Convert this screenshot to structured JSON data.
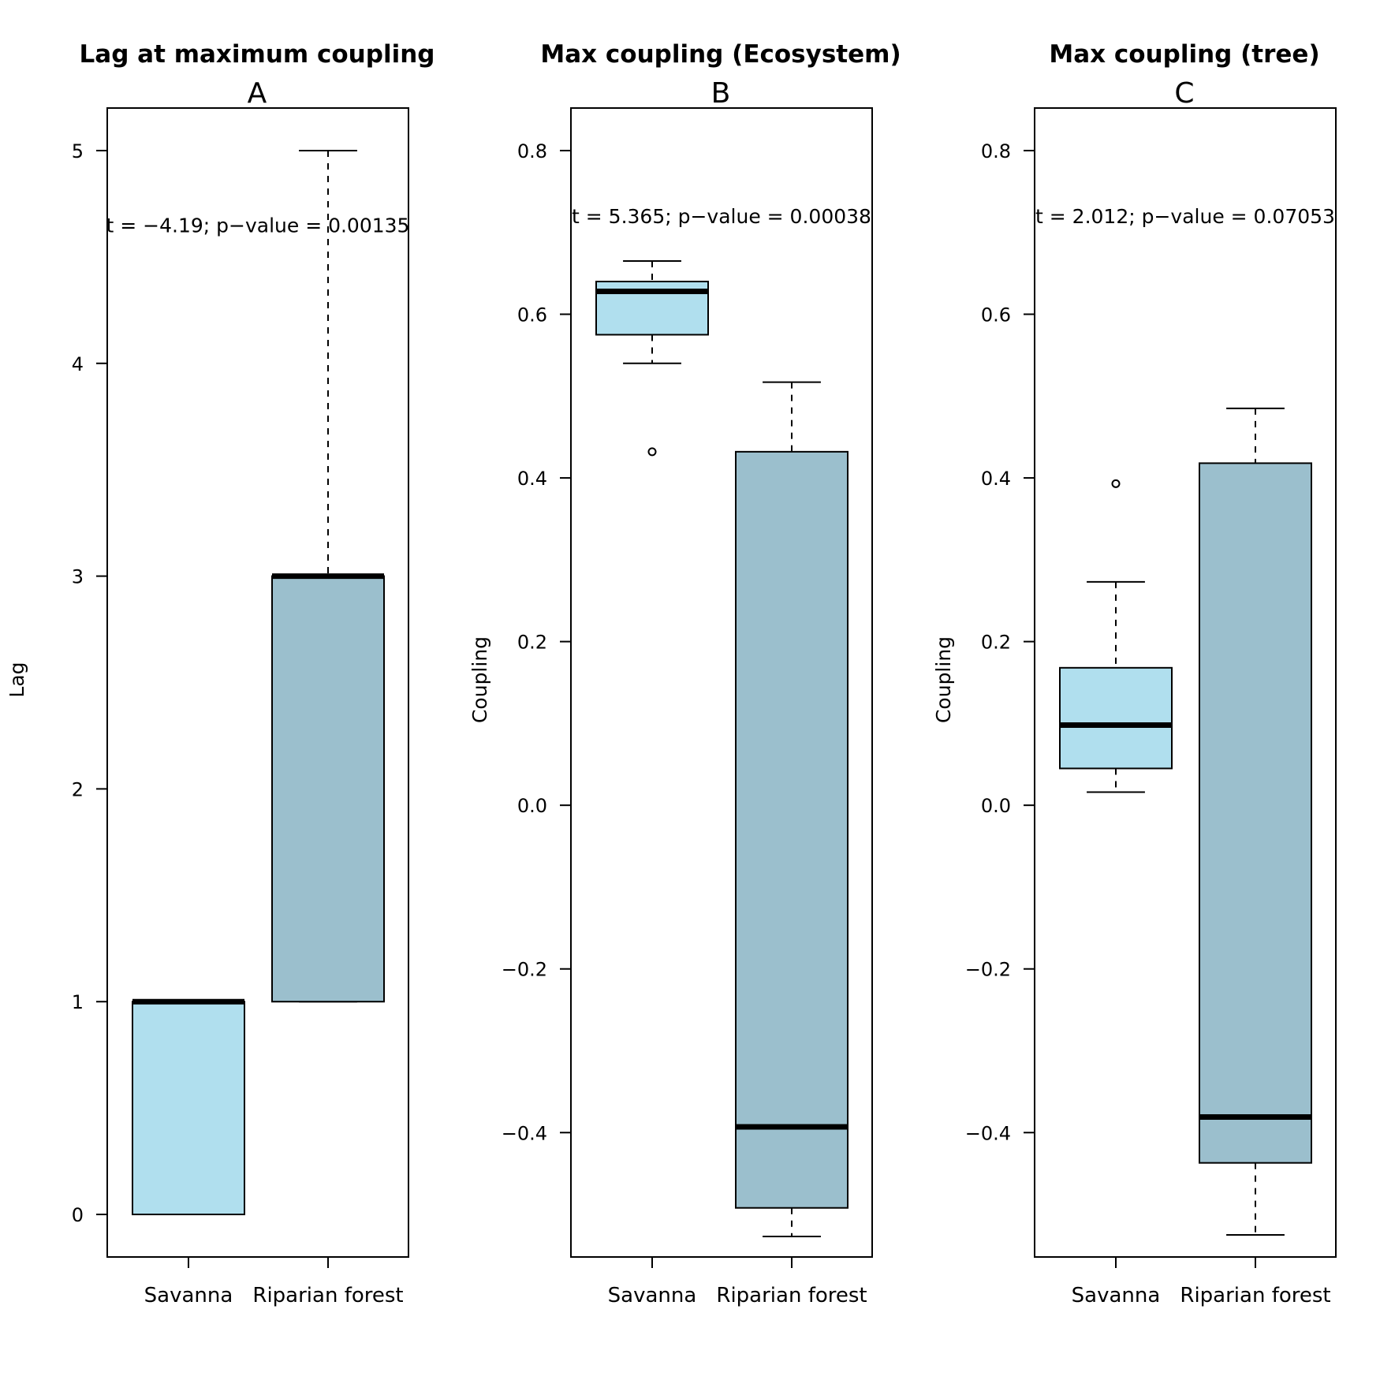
{
  "chart_data": [
    {
      "type": "boxplot",
      "title": "Lag at maximum coupling",
      "panel_label": "A",
      "ylabel": "Lag",
      "ylim": [
        -0.2,
        5.2
      ],
      "yticks": [
        0,
        1,
        2,
        3,
        4,
        5
      ],
      "ytick_labels": [
        "0",
        "1",
        "2",
        "3",
        "4",
        "5"
      ],
      "categories": [
        "Savanna",
        "Riparian forest"
      ],
      "annotation": "t = −4.19; p−value = 0.00135",
      "annotation_y": 4.65,
      "boxes": [
        {
          "category": "Savanna",
          "whisker_low": 0,
          "q1": 0,
          "median": 1,
          "q3": 1,
          "whisker_high": 1,
          "outliers": [],
          "color": "#b0dfee"
        },
        {
          "category": "Riparian forest",
          "whisker_low": 1,
          "q1": 1,
          "median": 3,
          "q3": 3,
          "whisker_high": 5,
          "outliers": [],
          "color": "#9bbfcd"
        }
      ]
    },
    {
      "type": "boxplot",
      "title": "Max coupling (Ecosystem)",
      "panel_label": "B",
      "ylabel": "Coupling",
      "ylim": [
        -0.552,
        0.852
      ],
      "yticks": [
        -0.4,
        -0.2,
        0.0,
        0.2,
        0.4,
        0.6,
        0.8
      ],
      "ytick_labels": [
        "−0.4",
        "−0.2",
        "0.0",
        "0.2",
        "0.4",
        "0.6",
        "0.8"
      ],
      "categories": [
        "Savanna",
        "Riparian forest"
      ],
      "annotation": "t = 5.365; p−value = 0.00038",
      "annotation_y": 0.72,
      "boxes": [
        {
          "category": "Savanna",
          "whisker_low": 0.54,
          "q1": 0.575,
          "median": 0.628,
          "q3": 0.64,
          "whisker_high": 0.665,
          "outliers": [
            0.432
          ],
          "color": "#b0dfee"
        },
        {
          "category": "Riparian forest",
          "whisker_low": -0.527,
          "q1": -0.492,
          "median": -0.393,
          "q3": 0.432,
          "whisker_high": 0.517,
          "outliers": [],
          "color": "#9bbfcd"
        }
      ]
    },
    {
      "type": "boxplot",
      "title": "Max coupling (tree)",
      "panel_label": "C",
      "ylabel": "Coupling",
      "ylim": [
        -0.552,
        0.852
      ],
      "yticks": [
        -0.4,
        -0.2,
        0.0,
        0.2,
        0.4,
        0.6,
        0.8
      ],
      "ytick_labels": [
        "−0.4",
        "−0.2",
        "0.0",
        "0.2",
        "0.4",
        "0.6",
        "0.8"
      ],
      "categories": [
        "Savanna",
        "Riparian forest"
      ],
      "annotation": "t = 2.012; p−value = 0.07053",
      "annotation_y": 0.72,
      "boxes": [
        {
          "category": "Savanna",
          "whisker_low": 0.016,
          "q1": 0.045,
          "median": 0.098,
          "q3": 0.168,
          "whisker_high": 0.273,
          "outliers": [
            0.393
          ],
          "color": "#b0dfee"
        },
        {
          "category": "Riparian forest",
          "whisker_low": -0.525,
          "q1": -0.437,
          "median": -0.381,
          "q3": 0.418,
          "whisker_high": 0.485,
          "outliers": [],
          "color": "#9bbfcd"
        }
      ]
    }
  ]
}
